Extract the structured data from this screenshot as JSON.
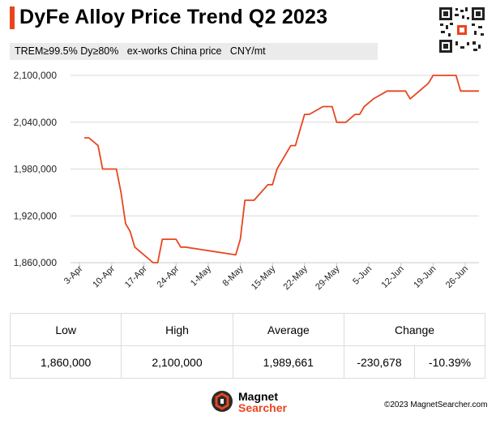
{
  "header": {
    "title": "DyFe Alloy Price Trend Q2 2023",
    "subtitle": "TREM≥99.5% Dy≥80%   ex-works China price   CNY/mt"
  },
  "chart_data": {
    "type": "line",
    "title": "DyFe Alloy Price Trend Q2 2023",
    "xlabel": "",
    "ylabel": "",
    "ylim": [
      1860000,
      2100000
    ],
    "yticks": [
      1860000,
      1920000,
      1980000,
      2040000,
      2100000
    ],
    "ytick_labels": [
      "1,860,000",
      "1,920,000",
      "1,980,000",
      "2,040,000",
      "2,100,000"
    ],
    "xrange": [
      0,
      89
    ],
    "xticks": [
      2,
      9,
      16,
      23,
      30,
      37,
      44,
      51,
      58,
      65,
      72,
      79,
      86
    ],
    "xtick_labels": [
      "3-Apr",
      "10-Apr",
      "17-Apr",
      "24-Apr",
      "1-May",
      "8-May",
      "15-May",
      "22-May",
      "29-May",
      "5-Jun",
      "12-Jun",
      "19-Jun",
      "26-Jun"
    ],
    "grid": "horizontal",
    "color": "#e8451f",
    "series": [
      {
        "x": [
          3,
          4,
          6,
          7,
          10,
          11,
          12,
          13,
          14,
          15,
          18,
          19,
          20,
          23,
          24,
          25,
          36,
          37,
          38,
          40,
          43,
          44,
          45,
          48,
          49,
          51,
          52,
          55,
          57,
          58,
          60,
          62,
          63,
          64,
          66,
          69,
          70,
          72,
          73,
          74,
          76,
          78,
          79,
          84,
          85,
          86,
          87,
          88,
          89
        ],
        "y": [
          2020000,
          2020000,
          2010000,
          1980000,
          1980000,
          1950000,
          1910000,
          1900000,
          1880000,
          1875000,
          1860000,
          1860000,
          1890000,
          1890000,
          1880000,
          1880000,
          1870000,
          1890000,
          1940000,
          1940000,
          1960000,
          1960000,
          1980000,
          2010000,
          2010000,
          2050000,
          2050000,
          2060000,
          2060000,
          2040000,
          2040000,
          2050000,
          2050000,
          2060000,
          2070000,
          2080000,
          2080000,
          2080000,
          2080000,
          2070000,
          2080000,
          2090000,
          2100000,
          2100000,
          2080000,
          2080000,
          2080000,
          2080000,
          2080000
        ]
      }
    ]
  },
  "stats": {
    "headers": {
      "low": "Low",
      "high": "High",
      "average": "Average",
      "change": "Change"
    },
    "values": {
      "low": "1,860,000",
      "high": "2,100,000",
      "average": "1,989,661",
      "change_abs": "-230,678",
      "change_pct": "-10.39%"
    }
  },
  "footer": {
    "logo_line1": "Magnet",
    "logo_line2": "Searcher",
    "copyright": "©2023 MagnetSearcher.com"
  }
}
